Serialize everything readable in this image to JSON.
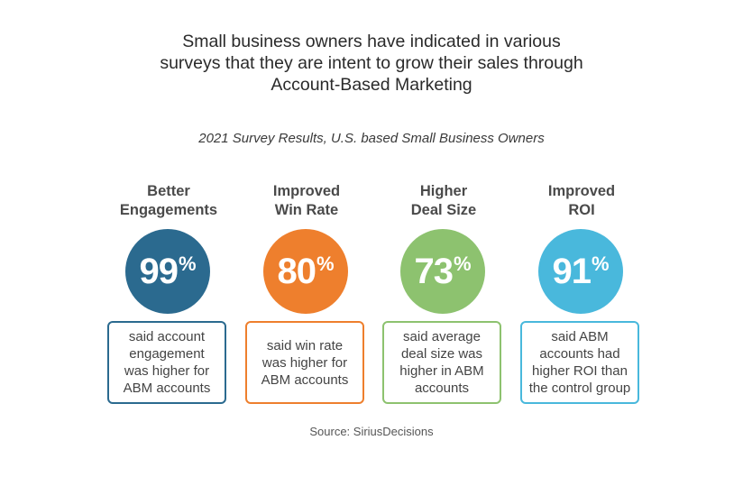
{
  "title": {
    "lines": [
      "Small business owners have indicated in various",
      "surveys that they are intent to grow their sales through",
      "Account-Based Marketing"
    ]
  },
  "subtitle": "2021 Survey Results, U.S. based Small Business Owners",
  "stats": [
    {
      "heading": [
        "Better",
        "Engagements"
      ],
      "value": "99",
      "unit": "%",
      "description": [
        "said account",
        "engagement",
        "was higher for",
        "ABM accounts"
      ],
      "color": "#2b6a8f"
    },
    {
      "heading": [
        "Improved",
        "Win Rate"
      ],
      "value": "80",
      "unit": "%",
      "description": [
        "said win rate",
        "was higher for",
        "ABM accounts"
      ],
      "color": "#ee7f2d"
    },
    {
      "heading": [
        "Higher",
        "Deal Size"
      ],
      "value": "73",
      "unit": "%",
      "description": [
        "said average",
        "deal size was",
        "higher in ABM",
        "accounts"
      ],
      "color": "#8dc26f"
    },
    {
      "heading": [
        "Improved",
        "ROI"
      ],
      "value": "91",
      "unit": "%",
      "description": [
        "said ABM",
        "accounts had",
        "higher ROI than",
        "the control group"
      ],
      "color": "#49b8dc"
    }
  ],
  "source": "Source: SiriusDecisions"
}
